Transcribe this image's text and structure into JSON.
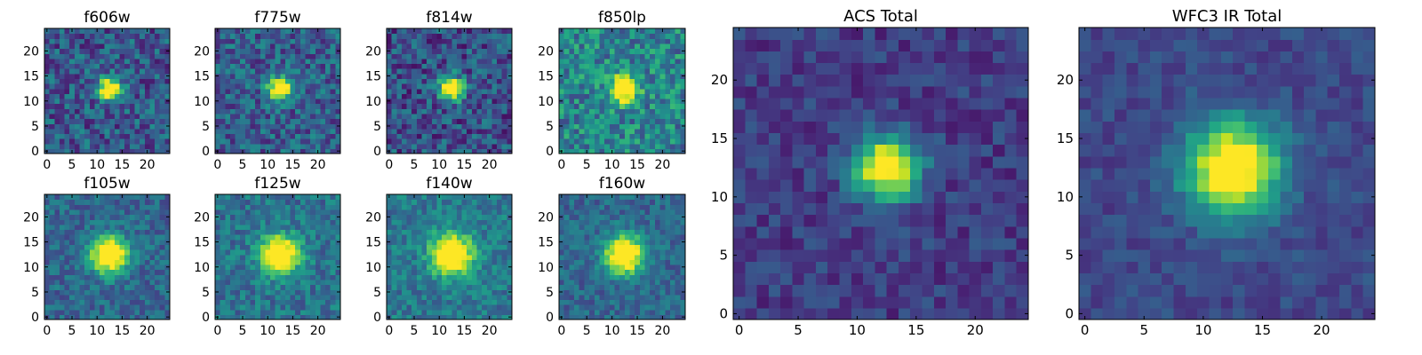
{
  "colormap": "viridis",
  "colors": {
    "viridis_low": "#440154",
    "viridis_mid": "#21918c",
    "viridis_high": "#fde725",
    "axis": "#000000",
    "background": "#ffffff"
  },
  "chart_data": [
    {
      "type": "heatmap",
      "title": "f606w",
      "xticks": [
        0,
        5,
        10,
        15,
        20
      ],
      "yticks": [
        0,
        5,
        10,
        15,
        20
      ],
      "xlim": [
        -0.5,
        24.5
      ],
      "ylim": [
        -0.5,
        24.5
      ],
      "grid_size": 25,
      "peak": [
        12.5,
        12.5
      ],
      "peak_sigma": 1.6,
      "noise_level": 0.42,
      "background": 0.28,
      "seed": 11
    },
    {
      "type": "heatmap",
      "title": "f775w",
      "xticks": [
        0,
        5,
        10,
        15,
        20
      ],
      "yticks": [
        0,
        5,
        10,
        15,
        20
      ],
      "xlim": [
        -0.5,
        24.5
      ],
      "ylim": [
        -0.5,
        24.5
      ],
      "grid_size": 25,
      "peak": [
        12.5,
        12.5
      ],
      "peak_sigma": 1.6,
      "noise_level": 0.4,
      "background": 0.3,
      "seed": 23
    },
    {
      "type": "heatmap",
      "title": "f814w",
      "xticks": [
        0,
        5,
        10,
        15,
        20
      ],
      "yticks": [
        0,
        5,
        10,
        15,
        20
      ],
      "xlim": [
        -0.5,
        24.5
      ],
      "ylim": [
        -0.5,
        24.5
      ],
      "grid_size": 25,
      "peak": [
        12.5,
        12.5
      ],
      "peak_sigma": 1.7,
      "noise_level": 0.42,
      "background": 0.25,
      "seed": 37
    },
    {
      "type": "heatmap",
      "title": "f850lp",
      "xticks": [
        0,
        5,
        10,
        15,
        20
      ],
      "yticks": [
        0,
        5,
        10,
        15,
        20
      ],
      "xlim": [
        -0.5,
        24.5
      ],
      "ylim": [
        -0.5,
        24.5
      ],
      "grid_size": 25,
      "peak": [
        12.5,
        12.5
      ],
      "peak_sigma": 1.8,
      "noise_level": 0.45,
      "background": 0.45,
      "seed": 41
    },
    {
      "type": "heatmap",
      "title": "f105w",
      "xticks": [
        0,
        5,
        10,
        15,
        20
      ],
      "yticks": [
        0,
        5,
        10,
        15,
        20
      ],
      "xlim": [
        -0.5,
        24.5
      ],
      "ylim": [
        -0.5,
        24.5
      ],
      "grid_size": 25,
      "peak": [
        12.5,
        12.5
      ],
      "peak_sigma": 2.6,
      "noise_level": 0.28,
      "background": 0.33,
      "seed": 53
    },
    {
      "type": "heatmap",
      "title": "f125w",
      "xticks": [
        0,
        5,
        10,
        15,
        20
      ],
      "yticks": [
        0,
        5,
        10,
        15,
        20
      ],
      "xlim": [
        -0.5,
        24.5
      ],
      "ylim": [
        -0.5,
        24.5
      ],
      "grid_size": 25,
      "peak": [
        12.5,
        12.5
      ],
      "peak_sigma": 2.6,
      "noise_level": 0.3,
      "background": 0.38,
      "seed": 67
    },
    {
      "type": "heatmap",
      "title": "f140w",
      "xticks": [
        0,
        5,
        10,
        15,
        20
      ],
      "yticks": [
        0,
        5,
        10,
        15,
        20
      ],
      "xlim": [
        -0.5,
        24.5
      ],
      "ylim": [
        -0.5,
        24.5
      ],
      "grid_size": 25,
      "peak": [
        12.5,
        12.5
      ],
      "peak_sigma": 2.8,
      "noise_level": 0.28,
      "background": 0.4,
      "seed": 79
    },
    {
      "type": "heatmap",
      "title": "f160w",
      "xticks": [
        0,
        5,
        10,
        15,
        20
      ],
      "yticks": [
        0,
        5,
        10,
        15,
        20
      ],
      "xlim": [
        -0.5,
        24.5
      ],
      "ylim": [
        -0.5,
        24.5
      ],
      "grid_size": 25,
      "peak": [
        12.5,
        12.5
      ],
      "peak_sigma": 2.7,
      "noise_level": 0.26,
      "background": 0.33,
      "seed": 83
    },
    {
      "type": "heatmap",
      "title": "ACS Total",
      "xticks": [
        0,
        5,
        10,
        15,
        20
      ],
      "yticks": [
        0,
        5,
        10,
        15,
        20
      ],
      "xlim": [
        -0.5,
        24.5
      ],
      "ylim": [
        -0.5,
        24.5
      ],
      "grid_size": 25,
      "peak": [
        12.5,
        12.5
      ],
      "peak_sigma": 1.9,
      "noise_level": 0.22,
      "background": 0.18,
      "seed": 97
    },
    {
      "type": "heatmap",
      "title": "WFC3 IR Total",
      "xticks": [
        0,
        5,
        10,
        15,
        20
      ],
      "yticks": [
        0,
        5,
        10,
        15,
        20
      ],
      "xlim": [
        -0.5,
        24.5
      ],
      "ylim": [
        -0.5,
        24.5
      ],
      "grid_size": 25,
      "peak": [
        12.5,
        12.5
      ],
      "peak_sigma": 2.8,
      "noise_level": 0.17,
      "background": 0.22,
      "seed": 101
    }
  ]
}
